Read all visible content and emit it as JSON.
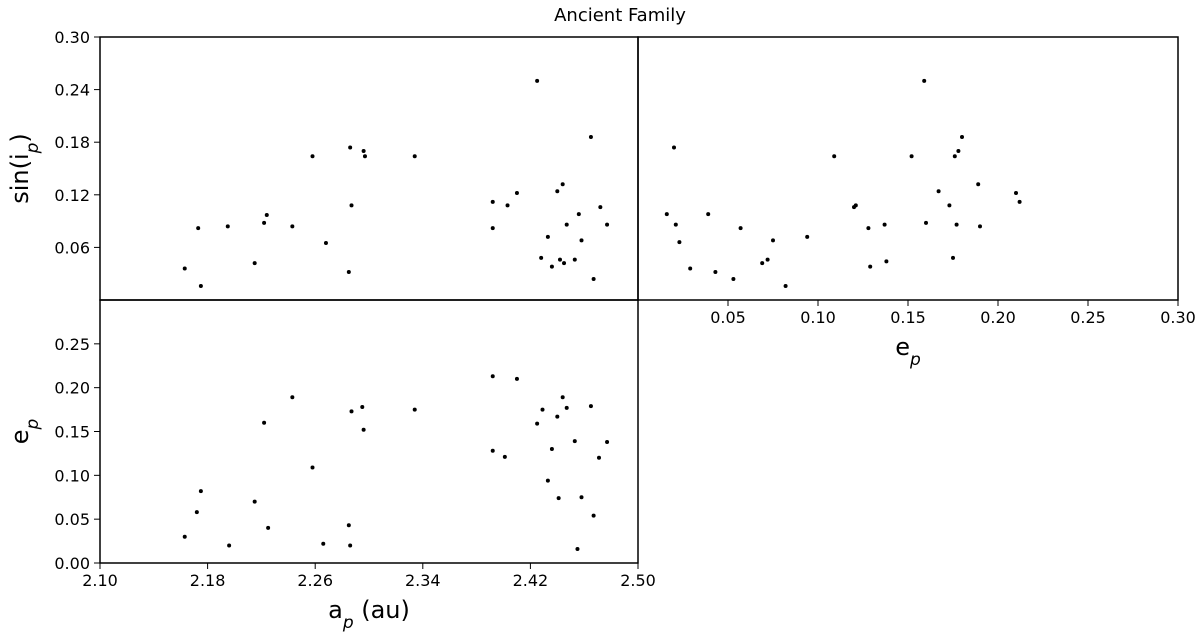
{
  "title": "Ancient Family",
  "chart_data": [
    {
      "type": "scatter",
      "panel": "sin(i_p) vs a_p",
      "ylabel": "sin(i_p)",
      "xlim": [
        2.1,
        2.5
      ],
      "ylim": [
        0.0,
        0.3
      ],
      "yticks": [
        "0.06",
        "0.12",
        "0.18",
        "0.24",
        "0.30"
      ],
      "grid": false,
      "points": [
        [
          2.163,
          0.036
        ],
        [
          2.173,
          0.082
        ],
        [
          2.175,
          0.016
        ],
        [
          2.195,
          0.084
        ],
        [
          2.215,
          0.042
        ],
        [
          2.222,
          0.088
        ],
        [
          2.224,
          0.097
        ],
        [
          2.243,
          0.084
        ],
        [
          2.258,
          0.164
        ],
        [
          2.268,
          0.065
        ],
        [
          2.285,
          0.032
        ],
        [
          2.286,
          0.174
        ],
        [
          2.287,
          0.108
        ],
        [
          2.296,
          0.17
        ],
        [
          2.297,
          0.164
        ],
        [
          2.334,
          0.164
        ],
        [
          2.392,
          0.112
        ],
        [
          2.392,
          0.082
        ],
        [
          2.403,
          0.108
        ],
        [
          2.41,
          0.122
        ],
        [
          2.425,
          0.25
        ],
        [
          2.428,
          0.048
        ],
        [
          2.433,
          0.072
        ],
        [
          2.436,
          0.038
        ],
        [
          2.44,
          0.124
        ],
        [
          2.442,
          0.046
        ],
        [
          2.444,
          0.132
        ],
        [
          2.445,
          0.042
        ],
        [
          2.447,
          0.086
        ],
        [
          2.453,
          0.046
        ],
        [
          2.456,
          0.098
        ],
        [
          2.458,
          0.068
        ],
        [
          2.465,
          0.186
        ],
        [
          2.467,
          0.024
        ],
        [
          2.472,
          0.106
        ],
        [
          2.477,
          0.086
        ]
      ]
    },
    {
      "type": "scatter",
      "panel": "sin(i_p) vs e_p",
      "xlabel": "e_p",
      "xlim": [
        0.0,
        0.3
      ],
      "ylim": [
        0.0,
        0.3
      ],
      "xticks": [
        "0.05",
        "0.10",
        "0.15",
        "0.20",
        "0.25",
        "0.30"
      ],
      "grid": false,
      "points": [
        [
          0.016,
          0.098
        ],
        [
          0.02,
          0.174
        ],
        [
          0.021,
          0.086
        ],
        [
          0.023,
          0.066
        ],
        [
          0.029,
          0.036
        ],
        [
          0.039,
          0.098
        ],
        [
          0.043,
          0.032
        ],
        [
          0.053,
          0.024
        ],
        [
          0.057,
          0.082
        ],
        [
          0.069,
          0.042
        ],
        [
          0.072,
          0.046
        ],
        [
          0.075,
          0.068
        ],
        [
          0.082,
          0.016
        ],
        [
          0.094,
          0.072
        ],
        [
          0.109,
          0.164
        ],
        [
          0.12,
          0.106
        ],
        [
          0.121,
          0.108
        ],
        [
          0.128,
          0.082
        ],
        [
          0.129,
          0.038
        ],
        [
          0.137,
          0.086
        ],
        [
          0.138,
          0.044
        ],
        [
          0.152,
          0.164
        ],
        [
          0.159,
          0.25
        ],
        [
          0.16,
          0.088
        ],
        [
          0.167,
          0.124
        ],
        [
          0.173,
          0.108
        ],
        [
          0.175,
          0.048
        ],
        [
          0.176,
          0.164
        ],
        [
          0.177,
          0.086
        ],
        [
          0.178,
          0.17
        ],
        [
          0.18,
          0.186
        ],
        [
          0.189,
          0.132
        ],
        [
          0.19,
          0.084
        ],
        [
          0.21,
          0.122
        ],
        [
          0.212,
          0.112
        ]
      ]
    },
    {
      "type": "scatter",
      "panel": "e_p vs a_p",
      "xlabel": "a_p (au)",
      "ylabel": "e_p",
      "xlim": [
        2.1,
        2.5
      ],
      "ylim": [
        0.0,
        0.3
      ],
      "xticks": [
        "2.10",
        "2.18",
        "2.26",
        "2.34",
        "2.42",
        "2.50"
      ],
      "yticks": [
        "0.00",
        "0.05",
        "0.10",
        "0.15",
        "0.20",
        "0.25"
      ],
      "grid": false,
      "points": [
        [
          2.163,
          0.03
        ],
        [
          2.172,
          0.058
        ],
        [
          2.175,
          0.082
        ],
        [
          2.196,
          0.02
        ],
        [
          2.215,
          0.07
        ],
        [
          2.222,
          0.16
        ],
        [
          2.225,
          0.04
        ],
        [
          2.243,
          0.189
        ],
        [
          2.258,
          0.109
        ],
        [
          2.266,
          0.022
        ],
        [
          2.285,
          0.043
        ],
        [
          2.286,
          0.02
        ],
        [
          2.287,
          0.173
        ],
        [
          2.295,
          0.178
        ],
        [
          2.296,
          0.152
        ],
        [
          2.334,
          0.175
        ],
        [
          2.392,
          0.213
        ],
        [
          2.392,
          0.128
        ],
        [
          2.401,
          0.121
        ],
        [
          2.41,
          0.21
        ],
        [
          2.425,
          0.159
        ],
        [
          2.429,
          0.175
        ],
        [
          2.433,
          0.094
        ],
        [
          2.436,
          0.13
        ],
        [
          2.44,
          0.167
        ],
        [
          2.441,
          0.074
        ],
        [
          2.444,
          0.189
        ],
        [
          2.447,
          0.177
        ],
        [
          2.453,
          0.139
        ],
        [
          2.455,
          0.016
        ],
        [
          2.458,
          0.075
        ],
        [
          2.465,
          0.179
        ],
        [
          2.467,
          0.054
        ],
        [
          2.471,
          0.12
        ],
        [
          2.477,
          0.138
        ]
      ]
    }
  ]
}
